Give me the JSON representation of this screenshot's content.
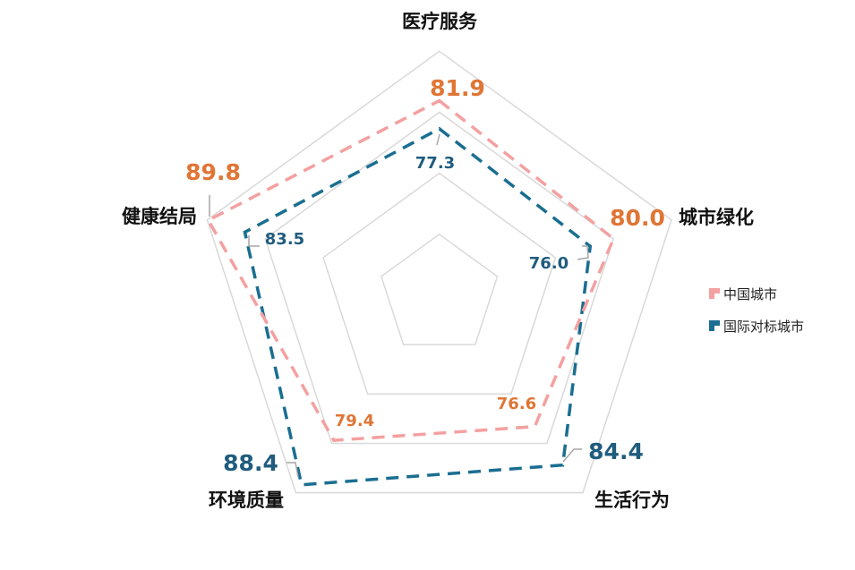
{
  "chart_data": {
    "type": "radar",
    "title": "",
    "categories": [
      "医疗服务",
      "城市绿化",
      "生活行为",
      "环境质量",
      "健康结局"
    ],
    "series": [
      {
        "name": "中国城市",
        "values": [
          81.9,
          80.0,
          76.6,
          79.4,
          89.8
        ],
        "line_color": "#f4a0a0",
        "label_color": "#e07535"
      },
      {
        "name": "国际对标城市",
        "values": [
          77.3,
          76.0,
          84.4,
          88.4,
          83.5
        ],
        "line_color": "#1a6e91",
        "label_color": "#1f5c7e"
      }
    ],
    "range": [
      50,
      90
    ],
    "rings": 4,
    "grid_color": "#d9d9d9",
    "line_style": "dashed",
    "legend_position": "right"
  },
  "legend": {
    "items": [
      {
        "label": "中国城市",
        "color": "#f4a0a0"
      },
      {
        "label": "国际对标城市",
        "color": "#1a6e91"
      }
    ]
  }
}
